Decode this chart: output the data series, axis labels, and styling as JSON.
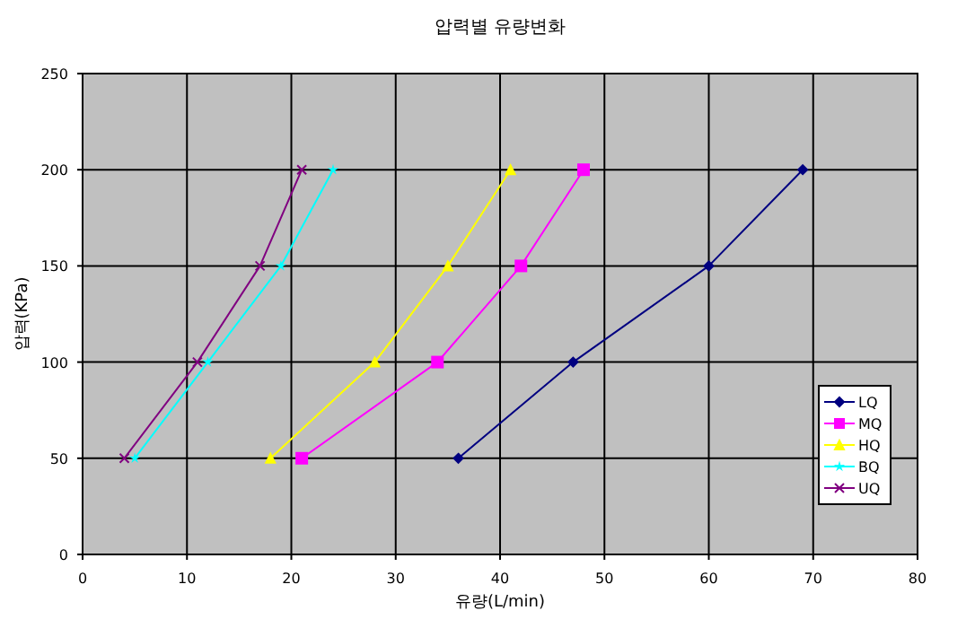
{
  "chart_data": {
    "type": "line",
    "title": "압력별 유량변화",
    "xlabel": "유량(L/min)",
    "ylabel": "압력(KPa)",
    "xlim": [
      0,
      80
    ],
    "xticks": [
      0,
      10,
      20,
      30,
      40,
      50,
      60,
      70,
      80
    ],
    "ylim": [
      0,
      250
    ],
    "yticks": [
      0,
      50,
      100,
      150,
      200,
      250
    ],
    "grid": true,
    "legend": "right",
    "series": [
      {
        "name": "LQ",
        "color": "#000080",
        "marker": "diamond",
        "x": [
          36,
          47,
          60,
          69
        ],
        "values": [
          50,
          100,
          150,
          200
        ]
      },
      {
        "name": "MQ",
        "color": "#ff00ff",
        "marker": "square",
        "x": [
          21,
          34,
          42,
          48
        ],
        "values": [
          50,
          100,
          150,
          200
        ]
      },
      {
        "name": "HQ",
        "color": "#ffff00",
        "marker": "triangle",
        "x": [
          18,
          28,
          35,
          41
        ],
        "values": [
          50,
          100,
          150,
          200
        ]
      },
      {
        "name": "BQ",
        "color": "#00ffff",
        "marker": "star",
        "x": [
          5,
          12,
          19,
          24
        ],
        "values": [
          50,
          100,
          150,
          200
        ]
      },
      {
        "name": "UQ",
        "color": "#800080",
        "marker": "cross",
        "x": [
          4,
          11,
          17,
          21
        ],
        "values": [
          50,
          100,
          150,
          200
        ]
      }
    ]
  }
}
